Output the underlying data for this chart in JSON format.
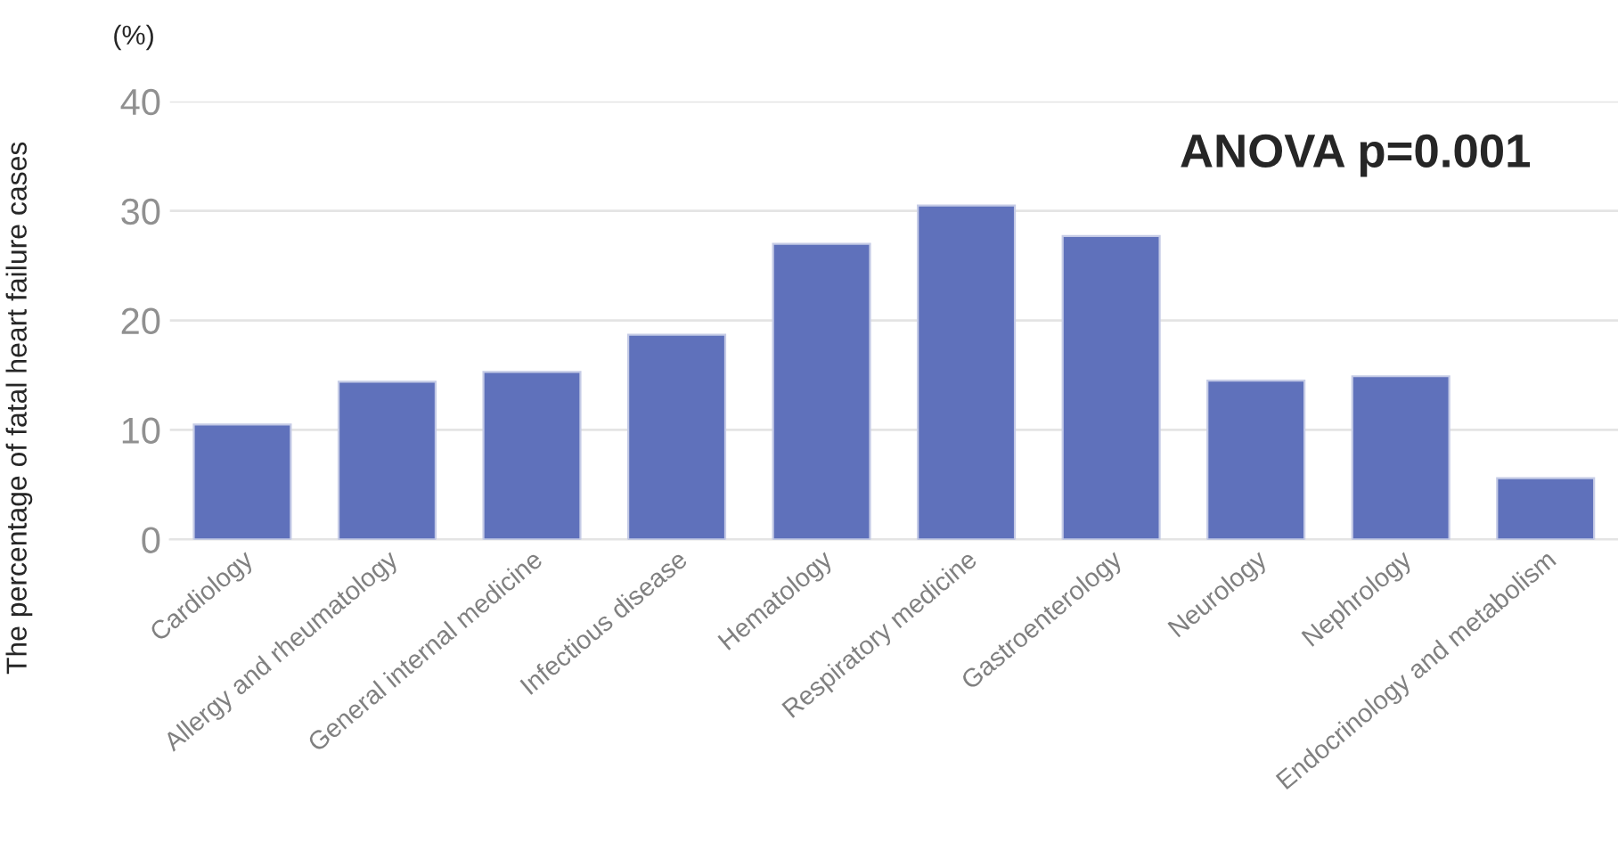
{
  "chart_data": {
    "type": "bar",
    "categories": [
      "Cardiology",
      "Allergy and rheumatology",
      "General internal medicine",
      "Infectious disease",
      "Hematology",
      "Respiratory medicine",
      "Gastroenterology",
      "Neurology",
      "Nephrology",
      "Endocrinology and metabolism"
    ],
    "values": [
      10.5,
      14.4,
      15.3,
      18.7,
      27.0,
      30.5,
      27.7,
      14.5,
      14.9,
      5.6
    ],
    "color": "#5f71bb",
    "ylabel": "The percentage of fatal heart failure cases",
    "ylim": [
      0,
      40
    ],
    "yticks": [
      0,
      10,
      20,
      30,
      40
    ],
    "grid": "y",
    "annotations": [
      "(%)",
      "ANOVA p=0.001"
    ]
  }
}
